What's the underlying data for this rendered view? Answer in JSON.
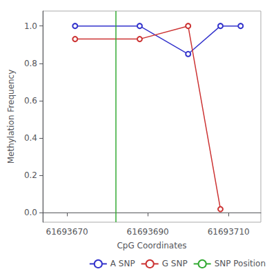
{
  "chart_data": {
    "type": "line",
    "xlabel": "CpG Coordinates",
    "ylabel": "Methylation Frequency",
    "series": [
      {
        "name": "A SNP",
        "type": "line",
        "color": "#3333cc",
        "marker": "circle",
        "line_style": "solid",
        "x": [
          61693672,
          61693688,
          61693700,
          61693708,
          61693713
        ],
        "values": [
          1.0,
          1.0,
          0.85,
          1.0,
          1.0
        ]
      },
      {
        "name": "G SNP",
        "type": "line",
        "color": "#cc3333",
        "marker": "circle",
        "line_style": "solid",
        "x": [
          61693672,
          61693688,
          61693700,
          61693708
        ],
        "values": [
          0.93,
          0.93,
          1.0,
          0.02
        ]
      },
      {
        "name": "SNP Position",
        "type": "vline",
        "color": "#33aa33",
        "line_style": "solid",
        "x": 61693682
      }
    ],
    "xlim": [
      61693664,
      61693718
    ],
    "ylim": [
      -0.05,
      1.08
    ],
    "xticks": [
      61693670,
      61693690,
      61693710
    ],
    "yticks": [
      {
        "value": 0.0,
        "label": "0.0"
      },
      0.2,
      0.4,
      0.6,
      0.8,
      {
        "value": 1.0,
        "label": "1.0"
      }
    ],
    "grid": false,
    "legend": "lower right"
  }
}
